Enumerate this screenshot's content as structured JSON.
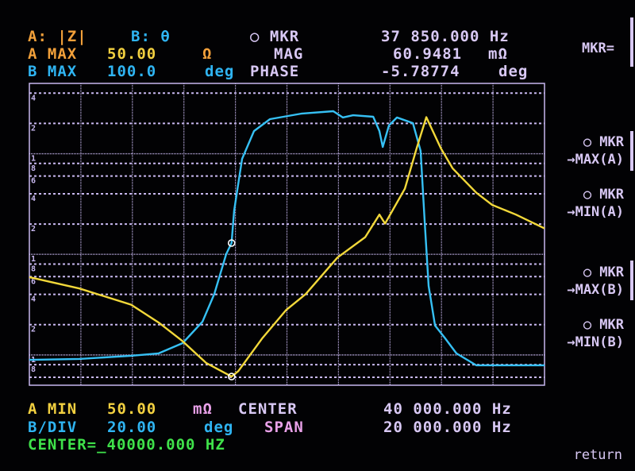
{
  "header": {
    "trace_a": "A: |Z|",
    "trace_b": "B: θ",
    "marker_label": "○ MKR",
    "marker_freq": "37 850.000 Hz",
    "a_max_label": "A MAX",
    "a_max_value": "50.00",
    "a_max_unit": "Ω",
    "mag_label": "MAG",
    "mag_value": "60.9481",
    "mag_unit": "mΩ",
    "b_max_label": "B MAX",
    "b_max_value": "100.0",
    "b_max_unit": "deg",
    "phase_label": "PHASE",
    "phase_value": "-5.78774",
    "phase_unit": "deg"
  },
  "footer": {
    "a_min_label": "A MIN",
    "a_min_value": "50.00",
    "a_min_unit": "mΩ",
    "center_label": "CENTER",
    "center_value": "40 000.000 Hz",
    "b_div_label": "B/DIV",
    "b_div_value": "20.00",
    "b_div_unit": "deg",
    "span_label": "SPAN",
    "span_value": "20 000.000 Hz",
    "entry": "CENTER=_40000.000 HZ"
  },
  "softkeys": {
    "title": "MKR=",
    "items": [
      {
        "line1": "○ MKR",
        "line2": "→MAX(A)"
      },
      {
        "line1": "○ MKR",
        "line2": "→MIN(A)"
      },
      {
        "line1": "○ MKR",
        "line2": "→MAX(B)"
      },
      {
        "line1": "○ MKR",
        "line2": "→MIN(B)"
      }
    ],
    "return": "return"
  },
  "log_tick_labels": [
    "4",
    "2",
    "1",
    "8",
    "6",
    "4",
    "2",
    "1",
    "8",
    "6",
    "4",
    "2",
    "1",
    "8"
  ],
  "colors": {
    "trace_a": "#f2d83a",
    "trace_b": "#36c0f4",
    "grid": "#c8b8f0",
    "marker": "#ffffff"
  },
  "chart_data": {
    "type": "line",
    "x_unit": "Hz",
    "xlim": [
      30000,
      50000
    ],
    "grid": true,
    "marker": {
      "x": 37850,
      "a": 0.0609481,
      "b": -5.78774
    },
    "series": [
      {
        "name": "A: |Z|",
        "unit": "Ω",
        "scale": "log",
        "ylim": [
          0.05,
          50
        ],
        "x": [
          30000,
          31940,
          33950,
          35020,
          35950,
          36870,
          37850,
          38110,
          39030,
          39960,
          40730,
          41960,
          43040,
          43590,
          43810,
          44580,
          45040,
          45410,
          45970,
          46430,
          47350,
          47970,
          48890,
          50000
        ],
        "y": [
          0.594,
          0.458,
          0.316,
          0.21,
          0.137,
          0.083,
          0.061,
          0.069,
          0.145,
          0.278,
          0.403,
          0.929,
          1.48,
          2.48,
          2.02,
          4.5,
          11.4,
          23.1,
          11.4,
          7.16,
          4.1,
          3.1,
          2.48,
          1.81
        ]
      },
      {
        "name": "B: θ",
        "unit": "deg",
        "scale": "linear",
        "ylim": [
          -100,
          100
        ],
        "x": [
          30000,
          31940,
          33950,
          35020,
          35950,
          36720,
          37180,
          37640,
          37850,
          37950,
          38260,
          38720,
          39340,
          40570,
          41800,
          42170,
          42570,
          43350,
          43590,
          43720,
          43960,
          44270,
          44890,
          45190,
          45350,
          45500,
          45750,
          46120,
          46580,
          47350,
          50000
        ],
        "y": [
          -83.2,
          -82.6,
          -80.5,
          -78.9,
          -72.1,
          -57.9,
          -39.5,
          -13.2,
          -5.8,
          15.8,
          50.0,
          68.4,
          76.3,
          80.0,
          81.6,
          77.4,
          78.9,
          77.9,
          68.4,
          57.9,
          72.1,
          77.4,
          73.7,
          55.3,
          7.9,
          -34.2,
          -60.5,
          -68.4,
          -78.9,
          -86.8,
          -86.8
        ]
      }
    ]
  }
}
